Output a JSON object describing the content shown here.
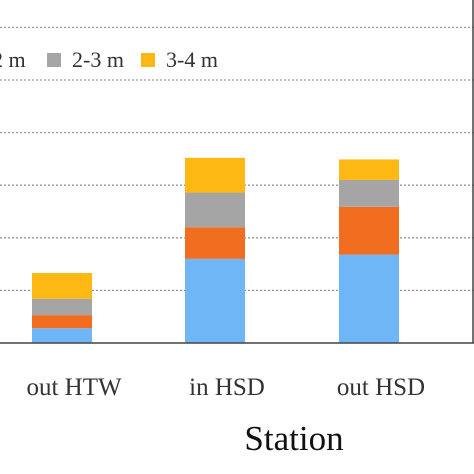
{
  "chart_data": {
    "type": "bar",
    "stacked": true,
    "categories": [
      "out HTW",
      "in HSD",
      "out HSD"
    ],
    "series": [
      {
        "name": "",
        "color": "#6fb6f7",
        "values": [
          0.28,
          1.6,
          1.68
        ]
      },
      {
        "name": "",
        "color": "#f16d1f",
        "values": [
          0.25,
          0.6,
          0.91
        ]
      },
      {
        "name": "2-3 m",
        "color": "#a5a5a5",
        "values": [
          0.31,
          0.66,
          0.51
        ]
      },
      {
        "name": "3-4 m",
        "color": "#fdb813",
        "values": [
          0.49,
          0.66,
          0.39
        ]
      }
    ],
    "legend": {
      "placement": "top",
      "entries": [
        {
          "label": "2 m",
          "color": "#f16d1f"
        },
        {
          "label": "2-3 m",
          "color": "#a5a5a5"
        },
        {
          "label": "3-4 m",
          "color": "#fdb813"
        }
      ]
    },
    "xlabel": "Station",
    "ylabel": "",
    "ylim": [
      0,
      6
    ],
    "yticks": [
      0,
      1,
      2,
      3,
      4,
      5,
      6
    ],
    "grid": "horizontal dashed"
  }
}
